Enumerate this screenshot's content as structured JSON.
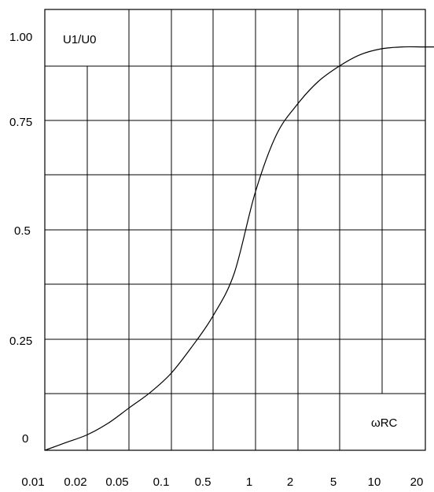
{
  "chart_data": {
    "type": "line",
    "title": "",
    "ylabel": "U1/U0",
    "xlabel": "ωRC",
    "x_tick_labels": [
      "0.01",
      "0.02",
      "0.05",
      "0.1",
      "0.5",
      "1",
      "2",
      "5",
      "10",
      "20"
    ],
    "y_tick_labels": [
      "0",
      "0.25",
      "0.5",
      "0.75",
      "1.00"
    ],
    "y_ticks": [
      0,
      0.25,
      0.5,
      0.75,
      1.0
    ],
    "ylim": [
      0,
      1.05
    ],
    "x_scale": "categorical-log (equally spaced ticks)",
    "grid": true,
    "series": [
      {
        "x_index": [
          0,
          0.5,
          1,
          1.5,
          2,
          2.5,
          3,
          3.5,
          4,
          4.5,
          5,
          5.5,
          6,
          6.5,
          7,
          7.5,
          8,
          8.5,
          9,
          9.5
        ],
        "values": [
          0.0,
          0.02,
          0.04,
          0.07,
          0.11,
          0.15,
          0.2,
          0.27,
          0.35,
          0.46,
          0.67,
          0.82,
          0.9,
          0.96,
          1.0,
          1.03,
          1.045,
          1.05,
          1.05,
          1.05
        ]
      }
    ]
  }
}
